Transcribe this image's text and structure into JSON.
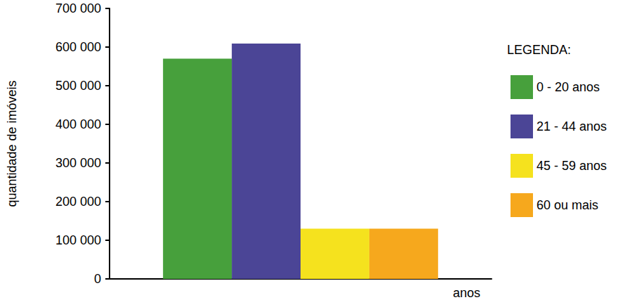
{
  "chart_data": {
    "type": "bar",
    "categories": [
      null
    ],
    "series": [
      {
        "name": "0 - 20 anos",
        "color": "#47a03c",
        "values": [
          570000
        ]
      },
      {
        "name": "21 - 44 anos",
        "color": "#4b4596",
        "values": [
          609000
        ]
      },
      {
        "name": "45 - 59 anos",
        "color": "#f5e21e",
        "values": [
          130000
        ]
      },
      {
        "name": "60 ou mais",
        "color": "#f6a81d",
        "values": [
          130000
        ]
      }
    ],
    "y_label": "quantidade de imóveis",
    "x_label": "anos",
    "legend_title": "LEGENDA:",
    "ylim": [
      0,
      700000
    ],
    "yticks": [
      0,
      {
        "value": 100000,
        "label": "100 000"
      },
      {
        "value": 200000,
        "label": "200 000"
      },
      {
        "value": 300000,
        "label": "300 000"
      },
      {
        "value": 400000,
        "label": "400 000"
      },
      {
        "value": 500000,
        "label": "500 000"
      },
      {
        "value": 600000,
        "label": "600 000"
      },
      {
        "value": 700000,
        "label": "700 000"
      }
    ],
    "grid": false,
    "legend": "right"
  }
}
